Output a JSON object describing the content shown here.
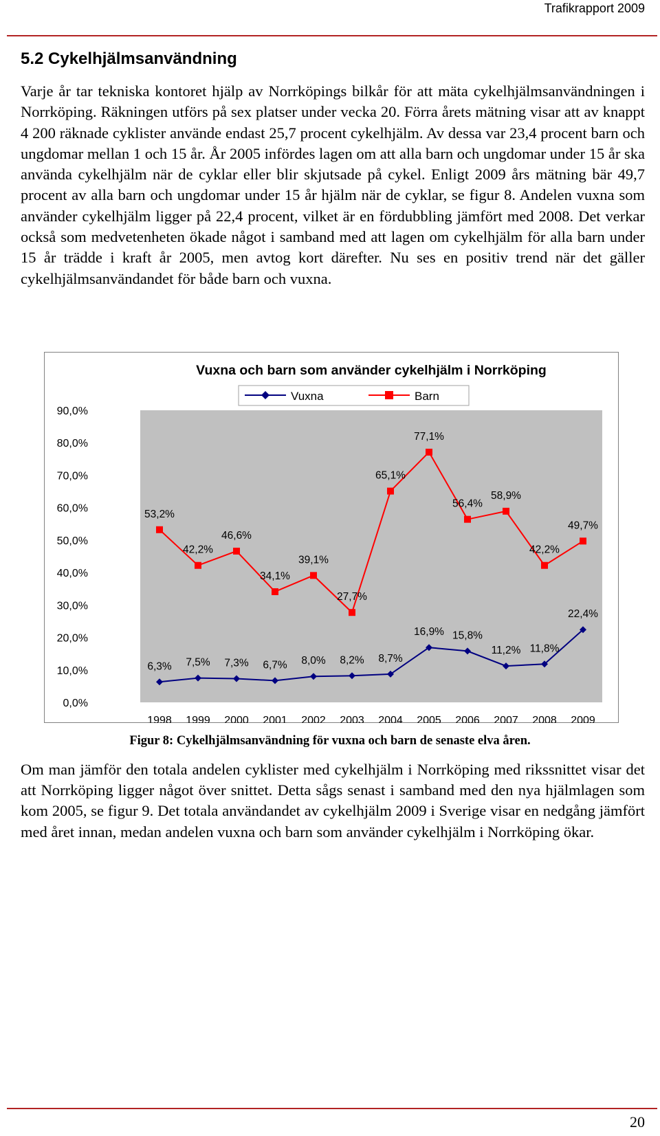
{
  "header": {
    "report_title": "Trafikrapport 2009"
  },
  "section": {
    "title": "5.2 Cykelhjälmsanvändning"
  },
  "paragraphs": {
    "intro": "Varje år tar tekniska kontoret hjälp av Norrköpings bilkår för att mäta cykelhjälmsanvändningen i Norrköping. Räkningen utförs på sex platser under vecka 20. Förra årets mätning visar att av knappt 4 200 räknade cyklister använde endast 25,7 procent cykelhjälm. Av dessa var 23,4 procent barn och ungdomar mellan 1 och 15 år. År 2005 infördes lagen om att alla barn och ungdomar under 15 år ska använda cykelhjälm när de cyklar eller blir skjutsade på cykel. Enligt 2009 års mätning bär 49,7 procent av alla barn och ungdomar under 15 år hjälm när de cyklar, se figur 8. Andelen vuxna som använder cykelhjälm ligger på 22,4 procent, vilket är en fördubbling jämfört med 2008. Det verkar också som medvetenheten ökade något i samband med att lagen om cykelhjälm för alla barn under 15 år trädde i kraft år 2005, men avtog kort därefter. Nu ses en positiv trend när det gäller cykelhjälmsanvändandet för både barn och vuxna.",
    "conclusion": "Om man jämför den totala andelen cyklister med cykelhjälm i Norrköping med rikssnittet visar det att Norrköping ligger något över snittet. Detta sågs senast i samband med den nya hjälmlagen som kom 2005, se figur 9. Det totala användandet av cykelhjälm 2009 i Sverige visar en nedgång jämfört med året innan, medan andelen vuxna och barn som använder cykelhjälm i Norrköping ökar."
  },
  "chart_data": {
    "type": "line",
    "title": "Vuxna och barn som använder cykelhjälm i Norrköping",
    "x": [
      "1998",
      "1999",
      "2000",
      "2001",
      "2002",
      "2003",
      "2004",
      "2005",
      "2006",
      "2007",
      "2008",
      "2009"
    ],
    "ylim": [
      0,
      90
    ],
    "ytick_labels": [
      "0,0%",
      "10,0%",
      "20,0%",
      "30,0%",
      "40,0%",
      "50,0%",
      "60,0%",
      "70,0%",
      "80,0%",
      "90,0%"
    ],
    "ytick_values": [
      0,
      10,
      20,
      30,
      40,
      50,
      60,
      70,
      80,
      90
    ],
    "grid": false,
    "legend_position": "top",
    "series": [
      {
        "name": "Vuxna",
        "color": "#000080",
        "marker": "diamond",
        "values": [
          6.3,
          7.5,
          7.3,
          6.7,
          8.0,
          8.2,
          8.7,
          16.9,
          15.8,
          11.2,
          11.8,
          22.4
        ],
        "labels": [
          "6,3%",
          "7,5%",
          "7,3%",
          "6,7%",
          "8,0%",
          "8,2%",
          "8,7%",
          "16,9%",
          "15,8%",
          "11,2%",
          "11,8%",
          "22,4%"
        ]
      },
      {
        "name": "Barn",
        "color": "#ff0000",
        "marker": "square",
        "values": [
          53.2,
          42.2,
          46.6,
          34.1,
          39.1,
          27.7,
          65.1,
          77.1,
          56.4,
          58.9,
          42.2,
          49.7
        ],
        "labels": [
          "53,2%",
          "42,2%",
          "46,6%",
          "34,1%",
          "39,1%",
          "27,7%",
          "65,1%",
          "77,1%",
          "56,4%",
          "58,9%",
          "42,2%",
          "49,7%"
        ]
      }
    ],
    "plot_background": "#c0c0c0",
    "chart_background": "#ffffff"
  },
  "figure": {
    "caption": "Figur 8: Cykelhjälmsanvändning för vuxna och barn de senaste elva åren."
  },
  "footer": {
    "page_number": "20"
  }
}
